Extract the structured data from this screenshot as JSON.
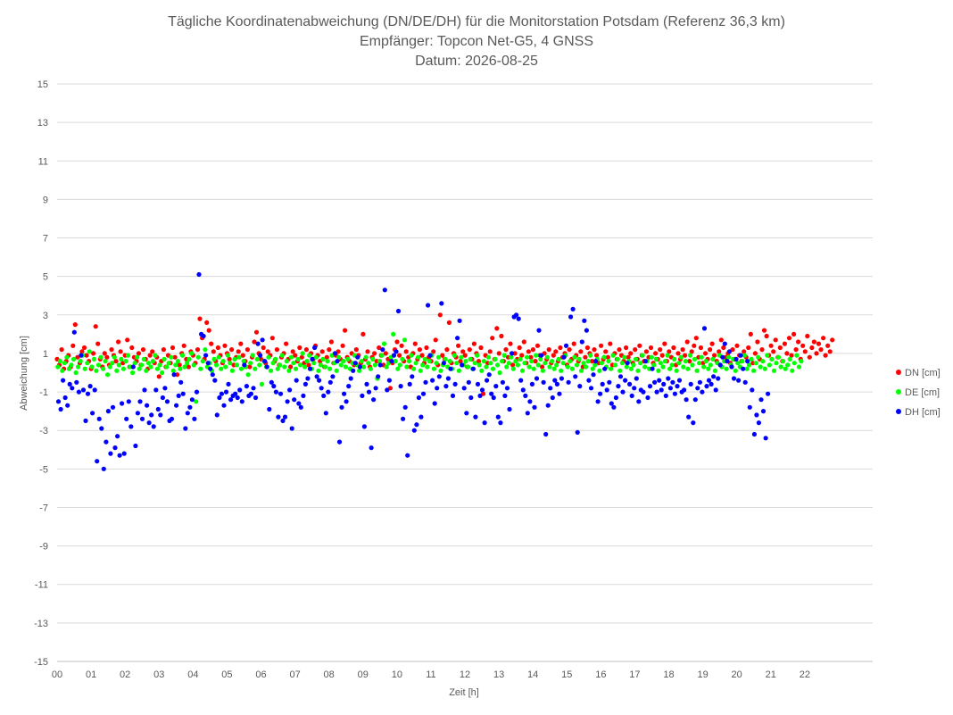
{
  "chart_data": {
    "type": "scatter",
    "title_lines": [
      "Tägliche Koordinatenabweichung (DN/DE/DH) für die Monitorstation Potsdam (Referenz 36,3 km)",
      "Empfänger: Topcon Net-G5, 4 GNSS",
      "Datum: 2026-08-25"
    ],
    "xlabel": "Zeit [h]",
    "ylabel": "Abweichung [cm]",
    "xlim": [
      0,
      24
    ],
    "ylim": [
      -15,
      15
    ],
    "x_ticks": [
      "00",
      "01",
      "02",
      "03",
      "04",
      "05",
      "06",
      "07",
      "08",
      "09",
      "10",
      "11",
      "12",
      "13",
      "14",
      "15",
      "16",
      "17",
      "18",
      "19",
      "20",
      "21",
      "22"
    ],
    "y_ticks": [
      15,
      13,
      11,
      9,
      7,
      5,
      3,
      1,
      -1,
      -3,
      -5,
      -7,
      -9,
      -11,
      -13,
      -15
    ],
    "grid": "horizontal",
    "legend_position": "right",
    "series": [
      {
        "name": "DN [cm]",
        "color": "#ff0000",
        "x_start": 0.0,
        "x_step": 0.0667,
        "values": [
          0.7,
          0.4,
          1.2,
          0.2,
          0.6,
          0.9,
          0.3,
          1.4,
          2.5,
          0.8,
          0.5,
          1.1,
          1.3,
          0.9,
          0.6,
          0.2,
          1.0,
          2.4,
          1.5,
          0.7,
          0.3,
          1.0,
          0.8,
          0.4,
          1.2,
          0.9,
          0.6,
          1.6,
          1.1,
          0.5,
          0.9,
          1.7,
          0.3,
          1.3,
          0.8,
          0.6,
          1.0,
          0.4,
          1.2,
          0.7,
          0.2,
          0.9,
          1.1,
          0.5,
          0.8,
          -0.2,
          0.6,
          1.2,
          0.3,
          0.9,
          0.5,
          1.3,
          0.8,
          -0.1,
          0.4,
          1.0,
          1.4,
          0.7,
          0.3,
          1.1,
          0.9,
          0.5,
          1.2,
          2.8,
          1.8,
          0.7,
          2.6,
          2.2,
          1.5,
          1.1,
          0.6,
          1.3,
          0.9,
          0.5,
          1.4,
          1.0,
          0.7,
          1.2,
          0.4,
          0.8,
          1.1,
          1.5,
          0.9,
          0.6,
          1.2,
          0.3,
          0.8,
          1.6,
          2.1,
          1.0,
          0.7,
          1.3,
          0.5,
          1.1,
          0.9,
          1.8,
          0.6,
          1.2,
          0.4,
          0.8,
          1.0,
          1.5,
          0.7,
          0.3,
          1.1,
          0.9,
          0.6,
          1.3,
          0.8,
          0.5,
          1.2,
          0.4,
          1.0,
          0.7,
          1.4,
          0.9,
          0.6,
          1.1,
          0.3,
          0.8,
          1.2,
          1.6,
          0.5,
          0.9,
          1.1,
          0.7,
          1.4,
          2.2,
          0.8,
          0.6,
          1.0,
          0.4,
          1.2,
          0.9,
          0.5,
          2.0,
          0.7,
          1.1,
          0.3,
          0.8,
          1.0,
          0.6,
          1.3,
          0.9,
          0.4,
          1.0,
          0.7,
          -0.8,
          0.5,
          1.2,
          1.6,
          0.9,
          1.4,
          0.6,
          1.1,
          0.8,
          0.3,
          1.0,
          1.5,
          0.7,
          1.2,
          0.9,
          0.5,
          1.3,
          0.8,
          0.6,
          1.1,
          1.7,
          0.4,
          3.0,
          0.9,
          0.7,
          1.2,
          2.6,
          0.5,
          1.0,
          0.8,
          1.4,
          0.6,
          1.1,
          0.9,
          0.3,
          1.2,
          0.7,
          1.5,
          1.0,
          0.6,
          1.3,
          -1.1,
          0.9,
          0.5,
          1.1,
          1.8,
          0.7,
          2.3,
          1.0,
          1.9,
          0.6,
          1.2,
          0.8,
          1.5,
          0.4,
          1.0,
          0.7,
          1.3,
          0.9,
          1.6,
          0.5,
          1.1,
          0.8,
          1.2,
          0.6,
          1.4,
          0.9,
          0.3,
          1.0,
          0.7,
          1.2,
          0.5,
          0.9,
          1.1,
          0.6,
          1.3,
          0.8,
          1.0,
          0.4,
          1.2,
          0.7,
          1.5,
          0.9,
          0.6,
          1.1,
          0.3,
          0.8,
          1.3,
          1.0,
          0.6,
          1.2,
          0.9,
          0.5,
          1.4,
          0.7,
          1.1,
          0.8,
          1.5,
          0.4,
          1.0,
          0.7,
          1.2,
          0.9,
          0.6,
          1.3,
          0.8,
          1.0,
          0.5,
          1.2,
          0.7,
          1.4,
          0.9,
          0.6,
          1.1,
          0.8,
          1.3,
          0.5,
          1.0,
          0.7,
          1.2,
          0.9,
          1.5,
          0.6,
          1.1,
          0.8,
          1.3,
          0.4,
          1.0,
          0.7,
          1.2,
          0.9,
          1.6,
          0.6,
          1.1,
          1.4,
          1.8,
          0.8,
          1.3,
          0.5,
          1.0,
          0.7,
          1.2,
          1.5,
          0.9,
          0.6,
          1.1,
          1.7,
          1.3,
          0.8,
          1.0,
          0.5,
          1.2,
          0.7,
          1.4,
          0.9,
          0.6,
          1.1,
          0.8,
          1.3,
          2.0,
          0.5,
          1.0,
          1.6,
          0.7,
          1.2,
          2.2,
          1.9,
          0.9,
          1.4,
          1.1,
          1.7,
          0.8,
          1.3,
          0.6,
          1.5,
          1.0,
          1.8,
          0.9,
          2.0,
          1.2,
          1.6,
          0.7,
          1.4,
          1.1,
          1.9,
          0.8,
          1.3,
          1.6,
          1.0,
          1.5,
          1.2,
          1.8,
          0.9,
          1.4,
          1.1,
          1.7
        ]
      },
      {
        "name": "DE [cm]",
        "color": "#00ff00",
        "x_start": 0.02,
        "x_step": 0.0667,
        "values": [
          0.3,
          0.6,
          0.1,
          0.5,
          0.8,
          0.2,
          0.4,
          0.7,
          0.0,
          0.3,
          0.6,
          0.9,
          0.2,
          0.5,
          1.1,
          0.3,
          0.7,
          0.1,
          0.4,
          0.8,
          0.2,
          0.6,
          -0.1,
          0.3,
          0.5,
          0.8,
          0.1,
          0.4,
          0.7,
          0.2,
          0.6,
          0.9,
          0.3,
          0.0,
          0.5,
          0.8,
          0.2,
          0.4,
          0.7,
          0.1,
          0.5,
          0.3,
          0.6,
          0.9,
          0.2,
          0.4,
          0.0,
          0.7,
          0.3,
          0.5,
          0.8,
          0.1,
          0.4,
          0.6,
          0.2,
          0.9,
          0.3,
          0.5,
          0.7,
          1.0,
          0.4,
          -1.5,
          0.8,
          0.2,
          0.6,
          1.2,
          0.3,
          0.5,
          0.1,
          0.7,
          0.4,
          0.8,
          0.2,
          0.6,
          0.3,
          0.9,
          0.5,
          0.1,
          0.7,
          0.4,
          0.8,
          0.2,
          0.6,
          0.3,
          -0.1,
          0.5,
          0.9,
          0.2,
          0.7,
          0.4,
          -0.6,
          0.6,
          0.3,
          0.8,
          0.1,
          0.5,
          0.7,
          0.2,
          0.4,
          0.9,
          0.3,
          0.6,
          0.1,
          0.8,
          0.5,
          0.2,
          0.7,
          0.4,
          1.0,
          0.3,
          0.6,
          0.9,
          0.2,
          0.5,
          0.8,
          0.1,
          0.4,
          0.7,
          0.3,
          0.6,
          0.2,
          0.9,
          0.5,
          0.1,
          0.8,
          0.4,
          0.6,
          0.3,
          0.7,
          0.2,
          0.5,
          0.9,
          0.4,
          0.1,
          0.6,
          0.3,
          0.8,
          0.5,
          0.2,
          0.7,
          0.4,
          -0.3,
          0.6,
          0.9,
          1.5,
          0.3,
          0.5,
          0.8,
          2.0,
          0.6,
          0.2,
          0.4,
          0.7,
          1.7,
          0.3,
          0.6,
          0.9,
          0.2,
          0.5,
          0.8,
          0.1,
          0.4,
          0.7,
          0.3,
          0.6,
          0.9,
          0.2,
          0.5,
          0.8,
          0.1,
          0.4,
          0.7,
          0.3,
          0.6,
          0.2,
          0.9,
          0.5,
          0.1,
          0.8,
          0.4,
          0.6,
          0.3,
          0.7,
          0.2,
          0.5,
          0.9,
          0.4,
          0.1,
          0.6,
          0.3,
          0.8,
          0.5,
          0.2,
          0.7,
          0.4,
          0.0,
          0.6,
          0.9,
          0.3,
          0.5,
          0.8,
          0.2,
          0.6,
          0.4,
          0.7,
          0.1,
          0.5,
          0.8,
          0.3,
          0.6,
          0.2,
          0.9,
          0.4,
          0.7,
          0.1,
          0.5,
          0.8,
          0.3,
          0.6,
          0.2,
          0.4,
          0.7,
          0.1,
          0.5,
          0.9,
          0.3,
          0.6,
          0.2,
          0.8,
          0.4,
          0.7,
          0.1,
          0.5,
          0.3,
          0.6,
          0.9,
          0.2,
          0.4,
          0.7,
          0.1,
          0.5,
          0.8,
          0.3,
          0.6,
          0.2,
          0.9,
          0.4,
          0.7,
          0.1,
          0.5,
          0.8,
          0.3,
          0.6,
          0.2,
          0.4,
          0.7,
          0.1,
          0.5,
          0.9,
          0.3,
          0.6,
          0.2,
          0.8,
          0.4,
          0.7,
          0.1,
          0.5,
          0.3,
          0.6,
          0.9,
          0.2,
          0.4,
          0.7,
          0.1,
          0.5,
          0.8,
          0.3,
          0.6,
          0.2,
          0.9,
          0.4,
          0.7,
          0.1,
          0.5,
          0.8,
          0.3,
          0.6,
          0.2,
          0.4,
          0.7,
          0.1,
          0.5,
          0.9,
          0.3,
          0.6,
          0.2,
          0.8,
          0.4,
          0.7,
          0.1,
          0.5,
          0.3,
          0.6,
          0.9,
          0.2,
          0.4,
          0.7,
          0.1,
          0.5,
          0.8,
          0.3,
          0.6,
          0.2,
          0.9,
          0.4,
          0.7,
          0.1,
          0.5,
          0.8,
          0.3,
          0.6,
          0.2,
          0.4,
          0.7,
          0.1,
          0.5,
          0.9,
          0.3,
          0.6
        ]
      },
      {
        "name": "DH [cm]",
        "color": "#0000ff",
        "x_start": 0.04,
        "x_step": 0.0667,
        "values": [
          -1.5,
          -1.9,
          -0.4,
          -1.3,
          -1.7,
          -0.6,
          -0.8,
          2.1,
          -0.5,
          -1.0,
          0.9,
          -0.9,
          -2.5,
          -1.1,
          -0.7,
          -2.1,
          -0.9,
          -4.6,
          -2.4,
          -2.9,
          -5.0,
          -3.6,
          -2.0,
          -4.2,
          -1.8,
          -3.9,
          -3.3,
          -4.3,
          -1.6,
          -4.2,
          -2.4,
          -1.5,
          -2.8,
          0.3,
          -3.8,
          -2.1,
          -1.5,
          -2.4,
          -0.9,
          -1.7,
          -2.6,
          -2.2,
          -2.8,
          -0.9,
          -1.9,
          -2.2,
          -1.3,
          -0.8,
          -1.5,
          -2.5,
          -2.4,
          -0.1,
          -1.7,
          -1.2,
          -0.5,
          -1.1,
          -2.9,
          -2.1,
          -1.8,
          -1.4,
          -2.4,
          -1.0,
          5.1,
          2.0,
          1.9,
          0.9,
          0.5,
          0.2,
          -0.1,
          -0.4,
          -2.2,
          -1.3,
          -1.1,
          -1.7,
          -1.0,
          -0.6,
          -1.4,
          -1.2,
          -1.1,
          -1.3,
          -0.9,
          -1.5,
          0.4,
          -0.7,
          -1.2,
          -1.1,
          -0.8,
          -1.3,
          1.5,
          0.9,
          1.7,
          0.6,
          0.3,
          -1.9,
          -0.5,
          -0.7,
          -1.0,
          -2.3,
          -1.1,
          -2.5,
          -2.3,
          -1.5,
          -0.9,
          -2.9,
          -1.4,
          -0.4,
          -1.6,
          -1.8,
          -1.2,
          -0.6,
          -0.3,
          0.2,
          0.7,
          1.3,
          -0.2,
          -0.4,
          -0.8,
          -1.2,
          -2.1,
          -1.0,
          -0.5,
          -0.2,
          1.0,
          0.6,
          -3.6,
          -1.8,
          -1.1,
          -1.5,
          -0.7,
          -0.3,
          0.1,
          0.5,
          0.8,
          0.3,
          -1.2,
          -2.8,
          -0.6,
          -1.0,
          -3.9,
          -1.4,
          -0.8,
          -0.2,
          0.4,
          1.2,
          4.3,
          -0.9,
          -0.4,
          0.6,
          0.9,
          1.1,
          3.2,
          -0.7,
          -2.4,
          -1.8,
          -4.3,
          -0.6,
          -0.2,
          -3.0,
          -2.7,
          -1.3,
          -2.3,
          -1.1,
          -0.5,
          3.5,
          0.9,
          -0.4,
          -1.6,
          -0.8,
          -0.2,
          3.6,
          0.5,
          -0.7,
          -0.3,
          0.2,
          -1.2,
          -0.6,
          1.8,
          2.7,
          0.4,
          -0.8,
          -2.1,
          -0.5,
          -1.3,
          0.2,
          -2.3,
          -0.6,
          -1.2,
          -0.9,
          -2.6,
          -0.4,
          -0.1,
          -1.1,
          -1.3,
          -0.7,
          -2.3,
          -2.6,
          -0.5,
          -1.2,
          -0.8,
          -1.9,
          1.0,
          2.9,
          3.0,
          2.8,
          -0.4,
          -0.9,
          -1.2,
          -2.1,
          -1.5,
          -0.6,
          -1.8,
          -0.3,
          2.2,
          0.9,
          -0.5,
          -3.2,
          -1.7,
          -0.8,
          -1.3,
          -0.4,
          -0.6,
          -1.1,
          -0.3,
          0.8,
          1.4,
          -0.5,
          2.9,
          3.3,
          -0.2,
          -3.1,
          -0.7,
          1.6,
          2.7,
          2.2,
          -0.4,
          -0.8,
          -0.1,
          0.6,
          -1.5,
          -1.1,
          -0.6,
          0.2,
          -0.9,
          -0.5,
          -1.6,
          -1.8,
          -1.3,
          -0.7,
          -0.2,
          -1.0,
          -0.4,
          0.5,
          -0.6,
          -1.2,
          -0.8,
          -0.3,
          -1.5,
          -0.9,
          -1.0,
          0.6,
          -1.3,
          -0.7,
          0.2,
          -0.5,
          -1.0,
          -0.4,
          -0.9,
          -0.6,
          -1.2,
          -0.3,
          -0.8,
          -0.5,
          -1.1,
          -0.7,
          -0.4,
          -1.0,
          -0.9,
          -1.4,
          -2.3,
          -0.6,
          -2.6,
          -1.4,
          -0.8,
          -0.5,
          -1.0,
          2.3,
          -0.7,
          -0.4,
          -0.6,
          -0.2,
          -0.9,
          -0.3,
          0.4,
          0.8,
          1.5,
          0.6,
          1.1,
          0.3,
          -0.3,
          0.7,
          -0.4,
          0.9,
          0.2,
          -0.5,
          0.6,
          -1.8,
          -0.9,
          -3.2,
          -2.2,
          -2.6,
          -1.4,
          -2.0,
          -3.4,
          -1.1
        ]
      }
    ]
  }
}
